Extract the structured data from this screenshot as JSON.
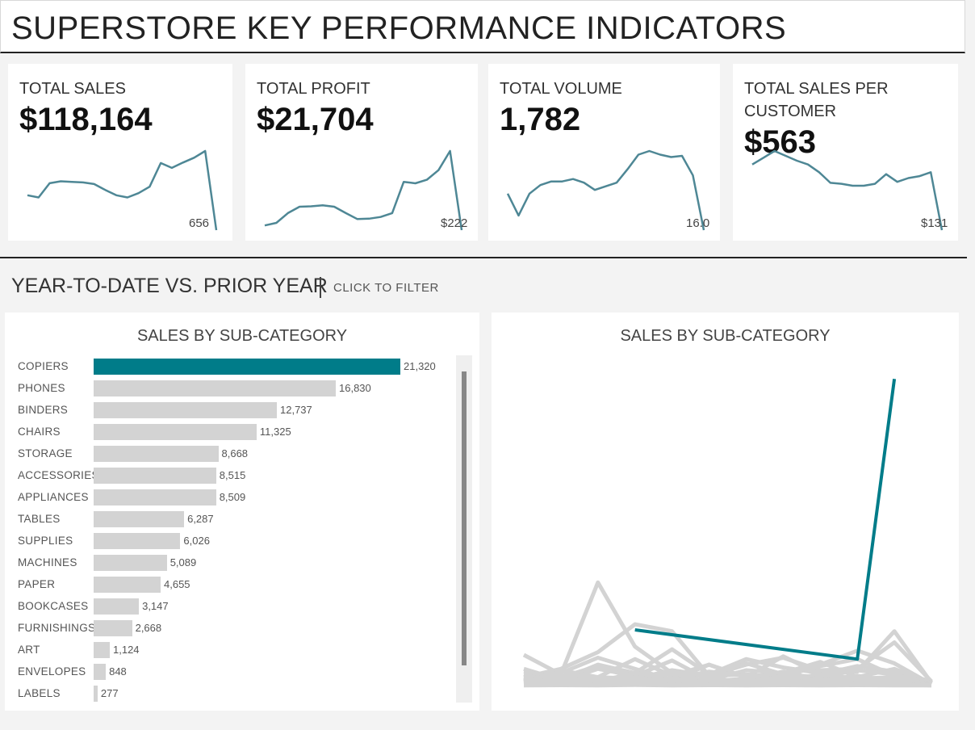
{
  "header": {
    "title": "SUPERSTORE KEY PERFORMANCE INDICATORS"
  },
  "colors": {
    "accent": "#007c89",
    "spark": "#4e8795",
    "bar_default": "#d3d3d3",
    "line_default": "#d3d3d3"
  },
  "kpis": [
    {
      "label": "TOTAL SALES",
      "value": "$118,164",
      "end_label": "656",
      "spark": [
        140,
        132,
        185,
        192,
        190,
        188,
        182,
        160,
        140,
        132,
        148,
        172,
        260,
        242,
        262,
        280,
        305,
        10
      ]
    },
    {
      "label": "TOTAL PROFIT",
      "value": "$21,704",
      "end_label": "$222",
      "spark": [
        30,
        42,
        88,
        118,
        120,
        125,
        118,
        88,
        60,
        62,
        70,
        88,
        235,
        228,
        245,
        290,
        380,
        8
      ]
    },
    {
      "label": "TOTAL VOLUME",
      "value": "1,782",
      "end_label": "16.0",
      "spark": [
        70,
        52,
        70,
        77,
        80,
        80,
        82,
        79,
        73,
        76,
        79,
        90,
        102,
        105,
        102,
        100,
        101,
        85,
        40
      ]
    },
    {
      "label": "TOTAL SALES PER\nCUSTOMER",
      "value": "$563",
      "end_label": "$131",
      "spark": [
        350,
        385,
        420,
        395,
        370,
        350,
        310,
        255,
        250,
        240,
        240,
        250,
        300,
        260,
        280,
        290,
        310,
        10
      ]
    }
  ],
  "section": {
    "title": "YEAR-TO-DATE VS. PRIOR YEAR",
    "hint": "CLICK TO FILTER"
  },
  "chart_data": [
    {
      "type": "bar",
      "title": "SALES BY SUB-CATEGORY",
      "categories": [
        "COPIERS",
        "PHONES",
        "BINDERS",
        "CHAIRS",
        "STORAGE",
        "ACCESSORIES",
        "APPLIANCES",
        "TABLES",
        "SUPPLIES",
        "MACHINES",
        "PAPER",
        "BOOKCASES",
        "FURNISHINGS",
        "ART",
        "ENVELOPES",
        "LABELS"
      ],
      "values": [
        21320,
        16830,
        12737,
        11325,
        8668,
        8515,
        8509,
        6287,
        6026,
        5089,
        4655,
        3147,
        2668,
        1124,
        848,
        277
      ],
      "value_labels": [
        "21,320",
        "16,830",
        "12,737",
        "11,325",
        "8,668",
        "8,515",
        "8,509",
        "6,287",
        "6,026",
        "5,089",
        "4,655",
        "3,147",
        "2,668",
        "1,124",
        "848",
        "277"
      ],
      "highlighted": "COPIERS"
    },
    {
      "type": "line",
      "title": "SALES BY SUB-CATEGORY",
      "x": [
        1,
        2,
        3,
        4,
        5,
        6,
        7,
        8,
        9,
        10,
        11,
        12
      ],
      "ylim": [
        0,
        23000
      ],
      "series": [
        {
          "name": "COPIERS",
          "highlighted": true,
          "values": [
            null,
            null,
            null,
            4000,
            null,
            null,
            null,
            null,
            null,
            1900,
            22000,
            null
          ]
        },
        {
          "name": "PHONES",
          "values": [
            2200,
            800,
            7400,
            2800,
            900,
            700,
            1500,
            2000,
            1100,
            1200,
            3100,
            300
          ]
        },
        {
          "name": "BINDERS",
          "values": [
            600,
            1200,
            2400,
            4400,
            3900,
            700,
            800,
            600,
            1500,
            2500,
            1600,
            100
          ]
        },
        {
          "name": "CHAIRS",
          "values": [
            1200,
            400,
            1500,
            900,
            2600,
            800,
            1900,
            1300,
            900,
            1000,
            3900,
            200
          ]
        },
        {
          "name": "STORAGE",
          "values": [
            300,
            900,
            2000,
            1200,
            400,
            1500,
            600,
            2100,
            800,
            1400,
            1000,
            300
          ]
        },
        {
          "name": "ACCESSORIES",
          "values": [
            800,
            300,
            1200,
            700,
            1800,
            400,
            1100,
            900,
            1700,
            600,
            1200,
            200
          ]
        },
        {
          "name": "APPLIANCES",
          "values": [
            400,
            1100,
            600,
            1900,
            700,
            1500,
            600,
            900,
            1400,
            1900,
            700,
            200
          ]
        },
        {
          "name": "TABLES",
          "values": [
            1000,
            600,
            1400,
            500,
            1100,
            700,
            1600,
            800,
            600,
            1100,
            800,
            100
          ]
        },
        {
          "name": "SUPPLIES",
          "values": [
            500,
            700,
            300,
            900,
            500,
            1000,
            700,
            400,
            800,
            500,
            600,
            100
          ]
        },
        {
          "name": "MACHINES",
          "values": [
            300,
            1000,
            500,
            400,
            900,
            300,
            500,
            1000,
            400,
            700,
            300,
            100
          ]
        },
        {
          "name": "PAPER",
          "values": [
            400,
            300,
            600,
            500,
            400,
            500,
            300,
            600,
            500,
            400,
            500,
            100
          ]
        },
        {
          "name": "BOOKCASES",
          "values": [
            200,
            500,
            300,
            600,
            200,
            400,
            300,
            200,
            500,
            300,
            400,
            50
          ]
        },
        {
          "name": "FURNISHINGS",
          "values": [
            300,
            200,
            400,
            300,
            500,
            200,
            300,
            400,
            200,
            300,
            200,
            50
          ]
        },
        {
          "name": "ART",
          "values": [
            100,
            200,
            100,
            200,
            100,
            150,
            100,
            200,
            100,
            150,
            100,
            30
          ]
        },
        {
          "name": "ENVELOPES",
          "values": [
            80,
            100,
            60,
            120,
            80,
            70,
            90,
            60,
            80,
            100,
            70,
            20
          ]
        },
        {
          "name": "LABELS",
          "values": [
            20,
            30,
            20,
            40,
            20,
            30,
            20,
            30,
            20,
            30,
            20,
            10
          ]
        }
      ]
    }
  ]
}
